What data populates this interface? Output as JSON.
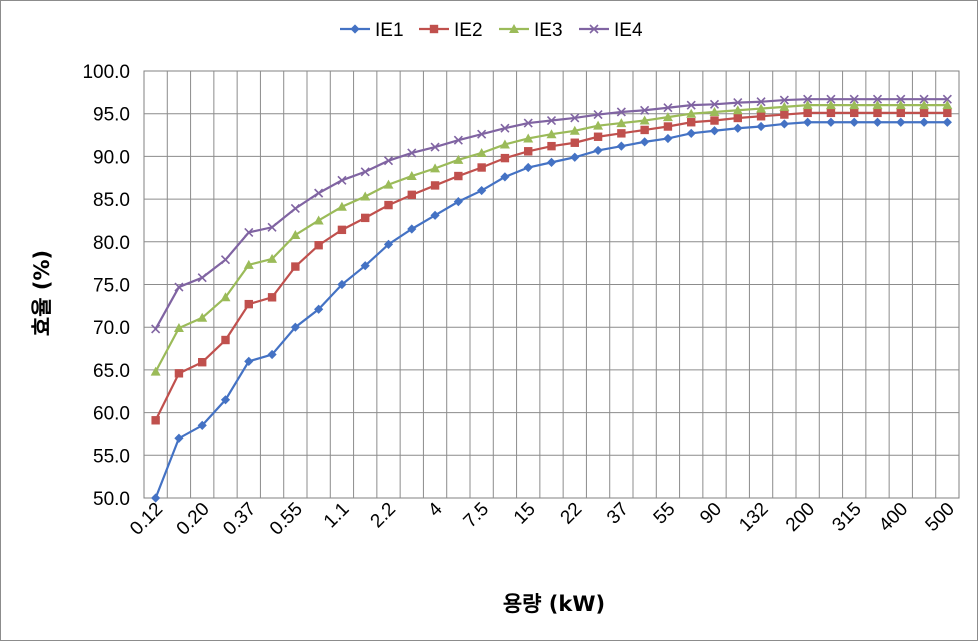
{
  "chart_data": {
    "type": "line",
    "xlabel": "용량 (kW)",
    "ylabel": "효율 (%)",
    "ylim": [
      50,
      100
    ],
    "yticks": [
      "50.0",
      "55.0",
      "60.0",
      "65.0",
      "70.0",
      "75.0",
      "80.0",
      "85.0",
      "90.0",
      "95.0",
      "100.0"
    ],
    "grid": true,
    "legend_position": "top",
    "x": [
      "0.12",
      "0.18",
      "0.20",
      "0.25",
      "0.37",
      "0.40",
      "0.55",
      "0.75",
      "1.1",
      "1.5",
      "2.2",
      "3",
      "4",
      "5.5",
      "7.5",
      "11",
      "15",
      "18.5",
      "22",
      "30",
      "37",
      "45",
      "55",
      "75",
      "90",
      "110",
      "132",
      "160",
      "200",
      "250",
      "315",
      "355",
      "400",
      "450",
      "500"
    ],
    "x_labels_shown": [
      "0.12",
      "0.20",
      "0.37",
      "0.55",
      "1.1",
      "2.2",
      "4",
      "7.5",
      "15",
      "22",
      "37",
      "55",
      "90",
      "132",
      "200",
      "315",
      "400",
      "500"
    ],
    "series": [
      {
        "name": "IE1",
        "color": "#4472c4",
        "marker": "diamond",
        "values": [
          50.0,
          57.0,
          58.5,
          61.5,
          66.0,
          66.8,
          70.0,
          72.1,
          75.0,
          77.2,
          79.7,
          81.5,
          83.1,
          84.7,
          86.0,
          87.6,
          88.7,
          89.3,
          89.9,
          90.7,
          91.2,
          91.7,
          92.1,
          92.7,
          93.0,
          93.3,
          93.5,
          93.8,
          94.0,
          94.0,
          94.0,
          94.0,
          94.0,
          94.0,
          94.0
        ]
      },
      {
        "name": "IE2",
        "color": "#c0504d",
        "marker": "square",
        "values": [
          59.1,
          64.6,
          65.9,
          68.5,
          72.7,
          73.5,
          77.1,
          79.6,
          81.4,
          82.8,
          84.3,
          85.5,
          86.6,
          87.7,
          88.7,
          89.8,
          90.6,
          91.2,
          91.6,
          92.3,
          92.7,
          93.1,
          93.5,
          94.0,
          94.2,
          94.5,
          94.7,
          94.9,
          95.1,
          95.1,
          95.1,
          95.1,
          95.1,
          95.1,
          95.1
        ]
      },
      {
        "name": "IE3",
        "color": "#9bbb59",
        "marker": "triangle",
        "values": [
          64.8,
          69.9,
          71.1,
          73.5,
          77.3,
          78.0,
          80.8,
          82.5,
          84.1,
          85.3,
          86.7,
          87.7,
          88.6,
          89.6,
          90.4,
          91.4,
          92.1,
          92.6,
          93.0,
          93.6,
          93.9,
          94.2,
          94.6,
          95.0,
          95.2,
          95.4,
          95.6,
          95.8,
          96.0,
          96.0,
          96.0,
          96.0,
          96.0,
          96.0,
          96.0
        ]
      },
      {
        "name": "IE4",
        "color": "#8064a2",
        "marker": "x",
        "values": [
          69.8,
          74.7,
          75.8,
          77.9,
          81.1,
          81.7,
          83.9,
          85.7,
          87.2,
          88.2,
          89.5,
          90.4,
          91.1,
          91.9,
          92.6,
          93.3,
          93.9,
          94.2,
          94.5,
          94.9,
          95.2,
          95.4,
          95.7,
          96.0,
          96.1,
          96.3,
          96.4,
          96.6,
          96.7,
          96.7,
          96.7,
          96.7,
          96.7,
          96.7,
          96.7
        ]
      }
    ]
  }
}
